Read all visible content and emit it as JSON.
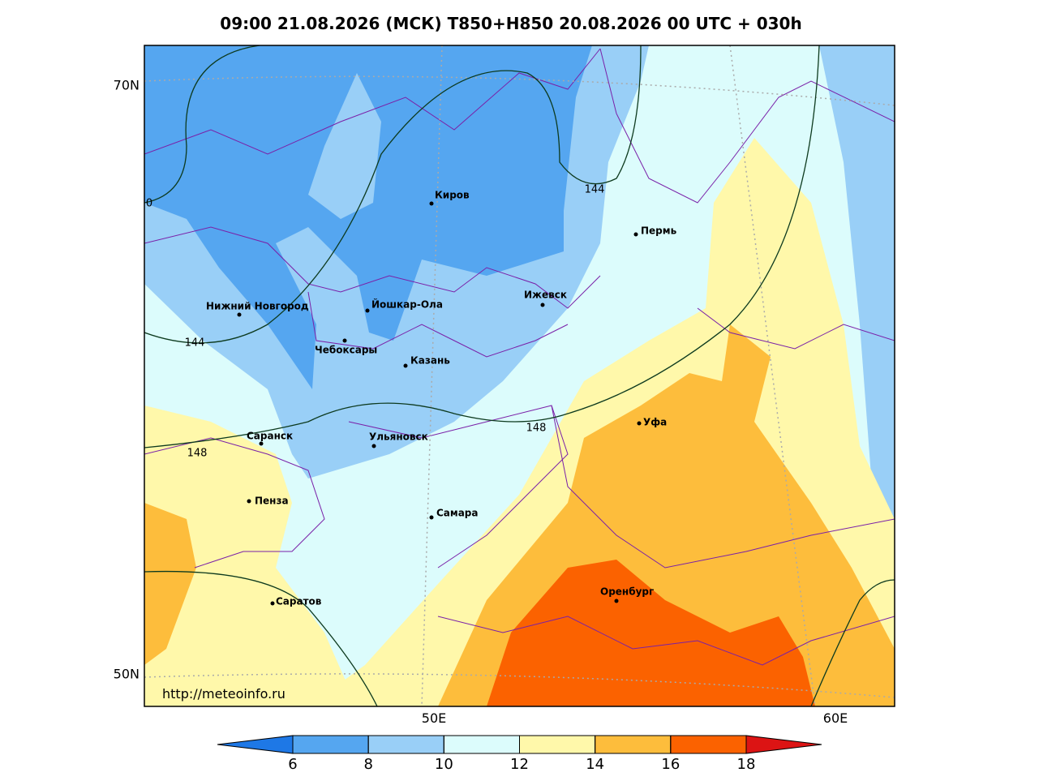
{
  "title": "09:00 21.08.2026 (МСК) T850+H850 20.08.2026 00 UTC + 030h",
  "map": {
    "cities": [
      "Киров",
      "Пермь",
      "Нижний Новгород",
      "Йошкар-Ола",
      "Ижевск",
      "Чебоксары",
      "Казань",
      "Уфа",
      "Саранск",
      "Ульяновск",
      "Пенза",
      "Самара",
      "Оренбург",
      "Саратов"
    ],
    "contour_labels": [
      "144",
      "144",
      "148",
      "148",
      "0"
    ],
    "lat_labels": [
      "70N",
      "50N"
    ],
    "lon_labels": [
      "50E",
      "60E"
    ],
    "url": "http://meteoinfo.ru"
  },
  "colorbar": {
    "ticks": [
      6,
      8,
      10,
      12,
      14,
      16,
      18
    ],
    "colors": [
      "#1e78e6",
      "#55a6f0",
      "#99cff7",
      "#dcfcfc",
      "#fff8aa",
      "#fdbd3c",
      "#fb6200",
      "#dc1414"
    ]
  }
}
